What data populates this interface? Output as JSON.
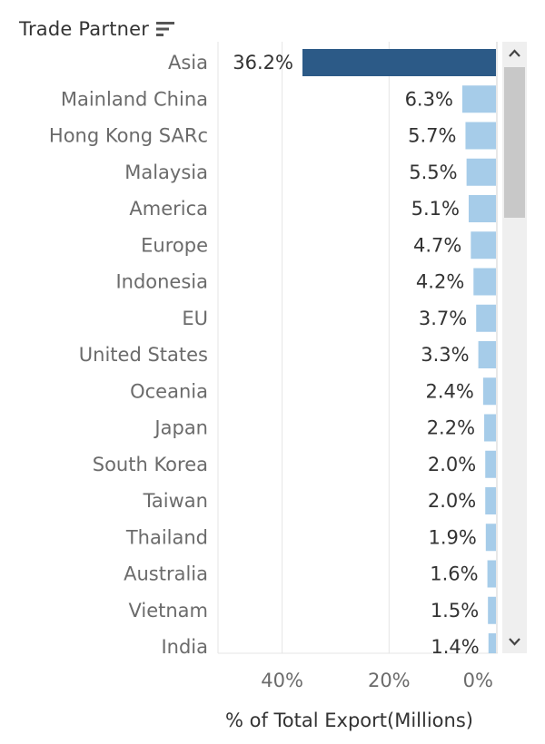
{
  "header": {
    "title": "Trade Partner",
    "sort_icon": "sort-descending-icon"
  },
  "colors": {
    "highlight_bar": "#2c5a87",
    "bar": "#a6cce9",
    "text": "#333333",
    "muted_text": "#6b6b6b",
    "gridline": "#e5e5e5",
    "scrollbar_track": "#efefef",
    "scrollbar_thumb": "#c8c8c8"
  },
  "scrollbar": {
    "up_icon": "chevron-up-icon",
    "down_icon": "chevron-down-icon"
  },
  "chart_data": {
    "type": "bar",
    "orientation": "horizontal",
    "categories": [
      "Asia",
      "Mainland China",
      "Hong Kong SARc",
      "Malaysia",
      "America",
      "Europe",
      "Indonesia",
      "EU",
      "United States",
      "Oceania",
      "Japan",
      "South Korea",
      "Taiwan",
      "Thailand",
      "Australia",
      "Vietnam",
      "India"
    ],
    "values": [
      36.2,
      6.3,
      5.7,
      5.5,
      5.1,
      4.7,
      4.2,
      3.7,
      3.3,
      2.4,
      2.2,
      2.0,
      2.0,
      1.9,
      1.6,
      1.5,
      1.4
    ],
    "value_labels": [
      "36.2%",
      "6.3%",
      "5.7%",
      "5.5%",
      "5.1%",
      "4.7%",
      "4.2%",
      "3.7%",
      "3.3%",
      "2.4%",
      "2.2%",
      "2.0%",
      "2.0%",
      "1.9%",
      "1.6%",
      "1.5%",
      "1.4%"
    ],
    "highlighted": [
      "Asia"
    ],
    "xlabel": "% of Total Export(Millions)",
    "ylabel": "Trade Partner",
    "xlim": [
      0,
      52
    ],
    "x_reversed": true,
    "x_ticks": [
      40,
      20,
      0
    ],
    "x_tick_labels": [
      "40%",
      "20%",
      "0%"
    ],
    "grid": true
  }
}
